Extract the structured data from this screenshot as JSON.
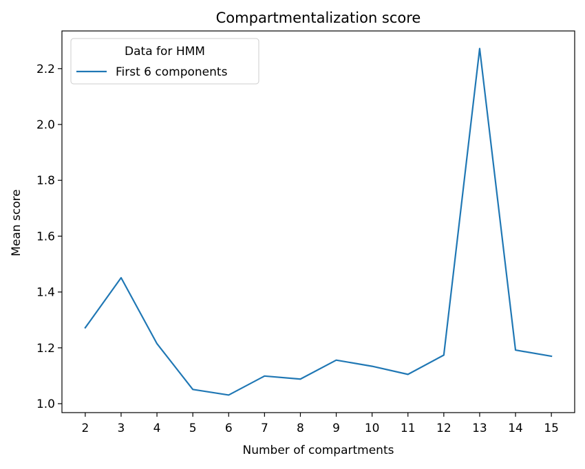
{
  "chart_data": {
    "type": "line",
    "title": "Compartmentalization score",
    "xlabel": "Number of compartments",
    "ylabel": "Mean score",
    "x": [
      2,
      3,
      4,
      5,
      6,
      7,
      8,
      9,
      10,
      11,
      12,
      13,
      14,
      15
    ],
    "series": [
      {
        "name": "First 6 components",
        "color": "#1f77b4",
        "values": [
          1.272,
          1.451,
          1.215,
          1.051,
          1.031,
          1.099,
          1.088,
          1.156,
          1.134,
          1.105,
          1.174,
          2.272,
          1.192,
          1.17
        ]
      }
    ],
    "xticks": [
      2,
      3,
      4,
      5,
      6,
      7,
      8,
      9,
      10,
      11,
      12,
      13,
      14,
      15
    ],
    "yticks": [
      "1.0",
      "1.2",
      "1.4",
      "1.6",
      "1.8",
      "2.0",
      "2.2"
    ],
    "xlim": [
      1.35,
      15.65
    ],
    "ylim": [
      0.968,
      2.335
    ],
    "grid": false,
    "legend": {
      "title": "Data for HMM",
      "placement": "top-left"
    }
  }
}
